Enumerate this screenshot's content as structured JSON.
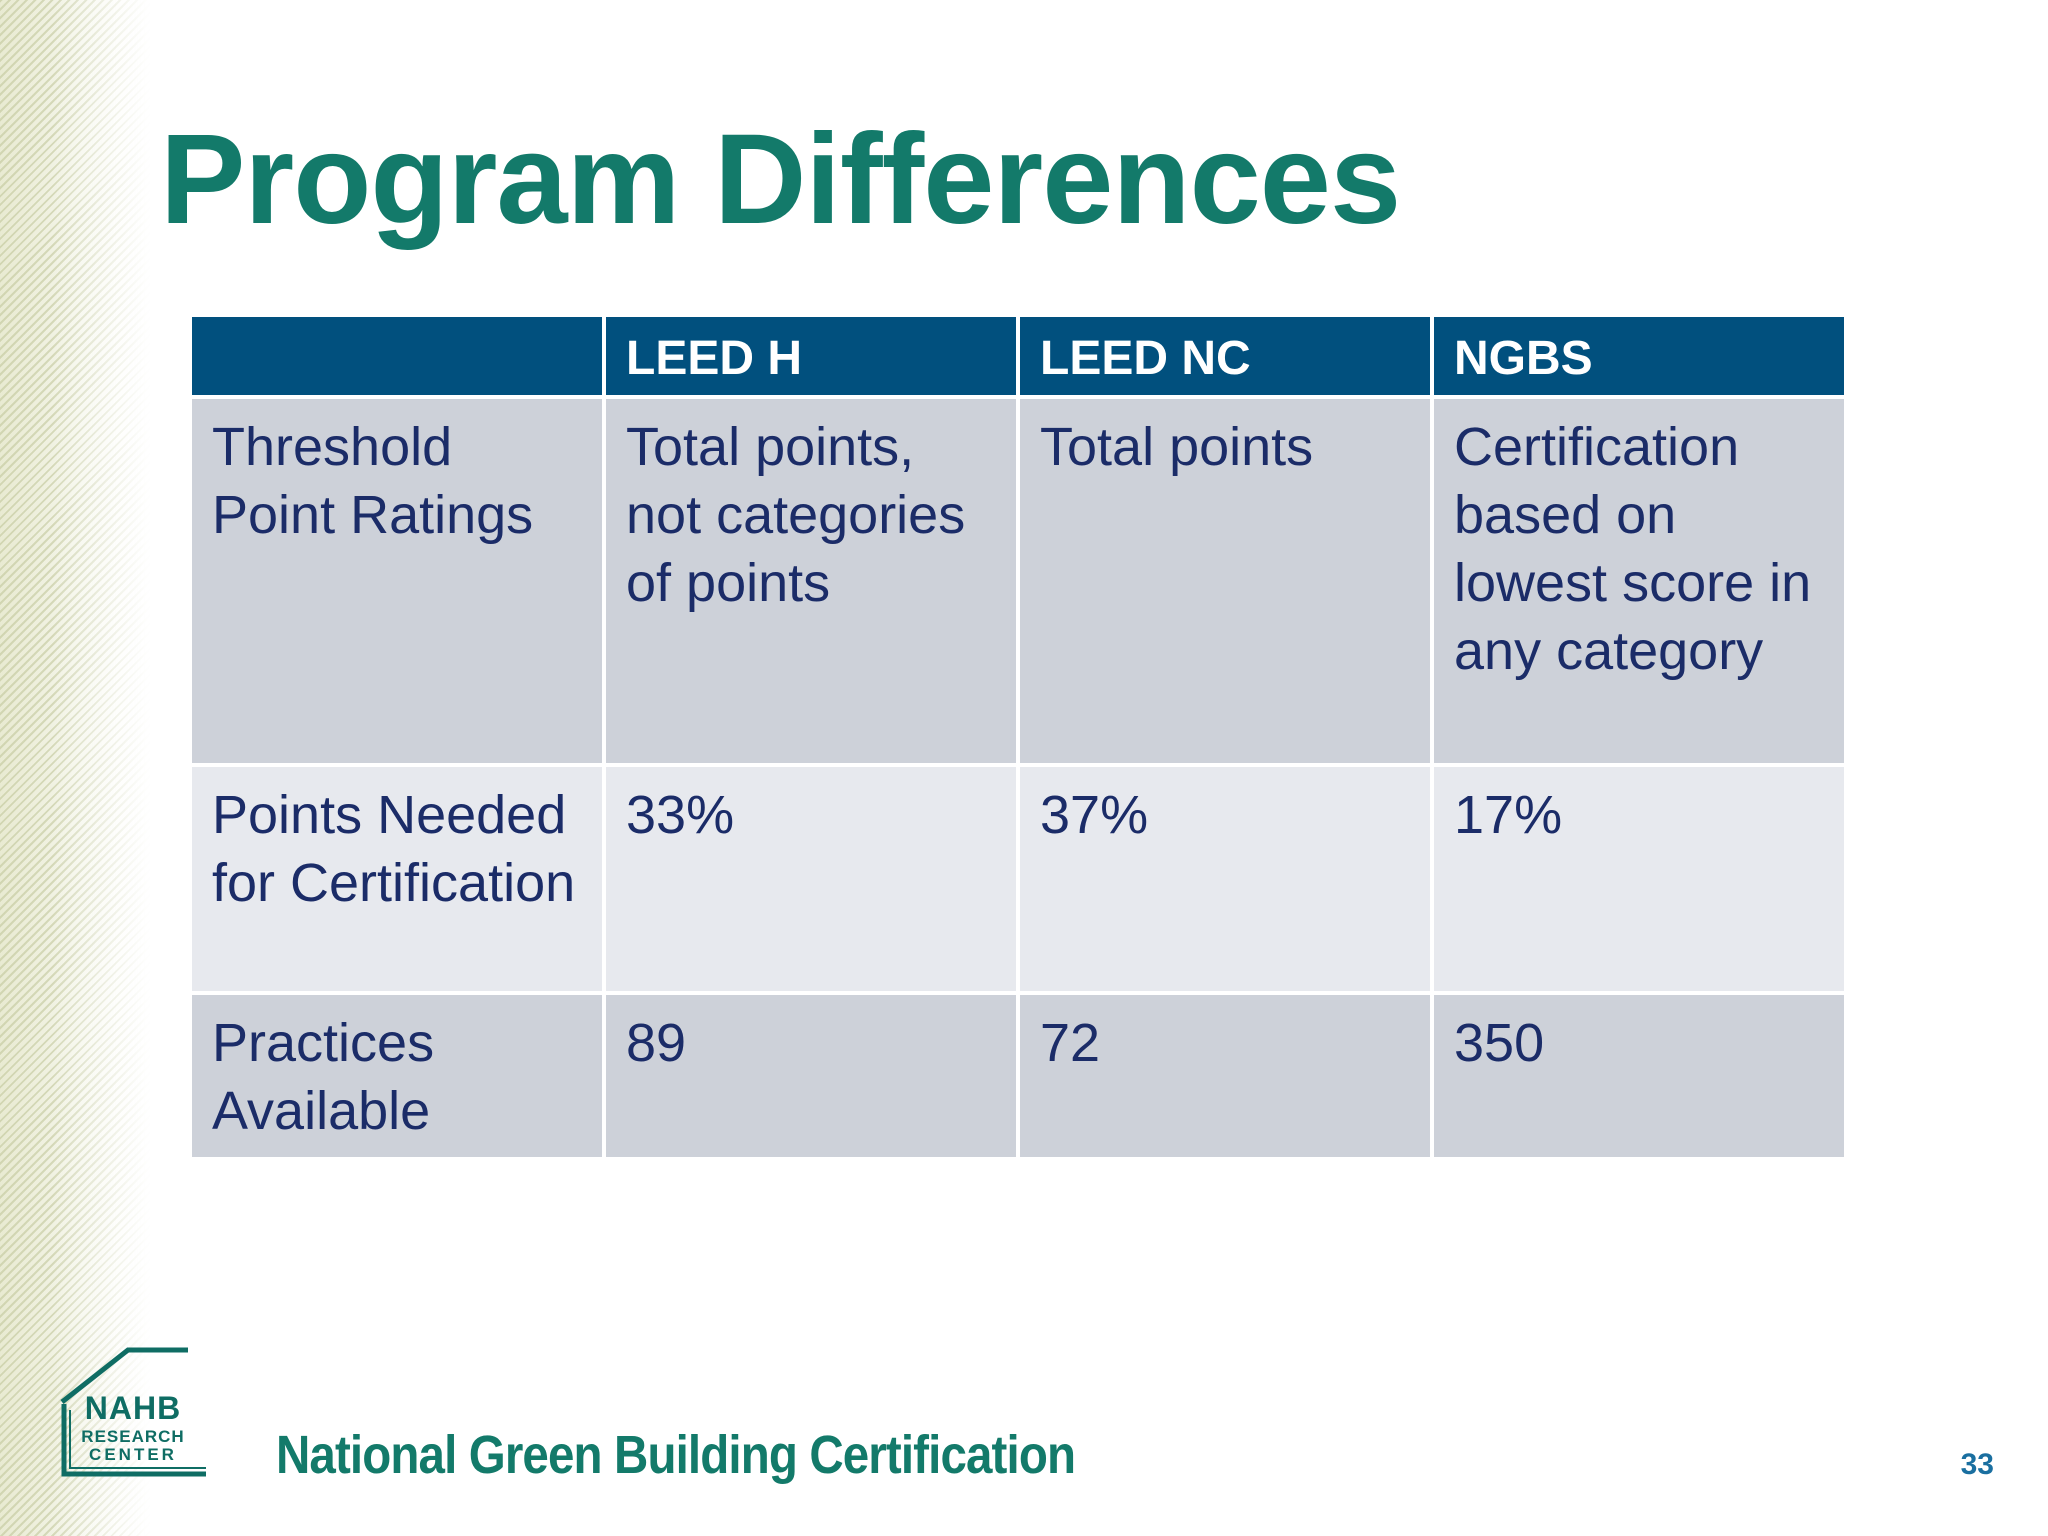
{
  "slide": {
    "title": "Program Differences",
    "page_number": "33"
  },
  "table": {
    "headers": [
      "",
      "LEED H",
      "LEED NC",
      "NGBS"
    ],
    "rows": [
      {
        "label": "Threshold Point Ratings",
        "leed_h": "Total points, not categories of points",
        "leed_nc": "Total points",
        "ngbs": "Certification based on lowest score in any category"
      },
      {
        "label": "Points Needed for Certification",
        "leed_h": "33%",
        "leed_nc": "37%",
        "ngbs": "17%"
      },
      {
        "label": "Practices Available",
        "leed_h": "89",
        "leed_nc": "72",
        "ngbs": "350"
      }
    ]
  },
  "footer": {
    "logo": {
      "line1": "NAHB",
      "line2": "RESEARCH",
      "line3": "CENTER"
    },
    "text": "National Green Building Certification"
  },
  "colors": {
    "title": "#137a6a",
    "header_bg": "#01507e",
    "row_dark": "#cdd1d9",
    "row_light": "#e7e9ee",
    "cell_text": "#1b2c68"
  }
}
